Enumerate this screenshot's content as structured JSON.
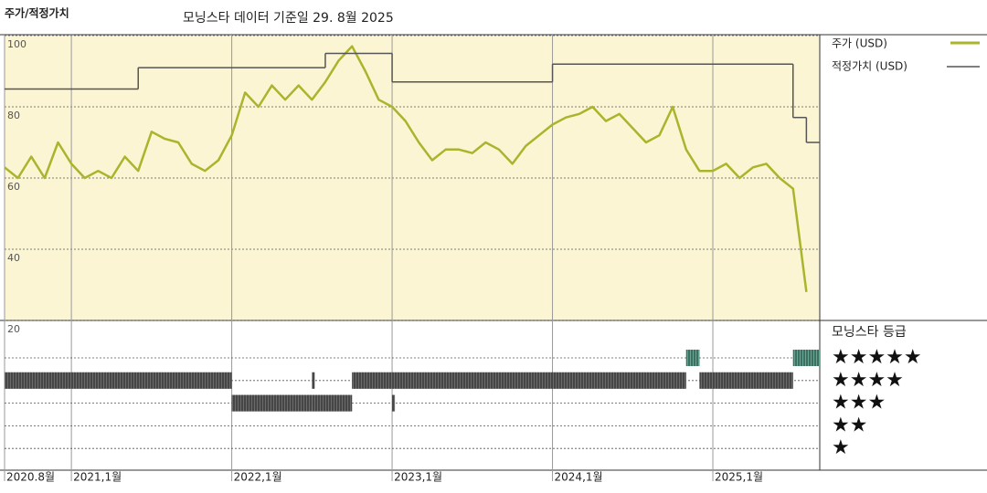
{
  "chart_data": {
    "type": "line",
    "title": "주가/적정가치",
    "subtitle": "모닝스타 데이터 기준일 29. 8월 2025",
    "xlim": [
      "2020-08",
      "2025-09"
    ],
    "xticks": [
      {
        "value": "2020-08",
        "label": "2020.8월"
      },
      {
        "value": "2021-01",
        "label": "2021,1월"
      },
      {
        "value": "2022-01",
        "label": "2022,1월"
      },
      {
        "value": "2023-01",
        "label": "2023,1월"
      },
      {
        "value": "2024-01",
        "label": "2024,1월"
      },
      {
        "value": "2025-01",
        "label": "2025,1월"
      }
    ],
    "ylim": [
      20,
      100
    ],
    "yticks": [
      100,
      80,
      60,
      40,
      20
    ],
    "grid": true,
    "series": [
      {
        "name": "주가 (USD)",
        "color": "#a9b52c",
        "x": [
          "2020-08",
          "2020-09",
          "2020-10",
          "2020-11",
          "2020-12",
          "2021-01",
          "2021-02",
          "2021-03",
          "2021-04",
          "2021-05",
          "2021-06",
          "2021-07",
          "2021-08",
          "2021-09",
          "2021-10",
          "2021-11",
          "2021-12",
          "2022-01",
          "2022-02",
          "2022-03",
          "2022-04",
          "2022-05",
          "2022-06",
          "2022-07",
          "2022-08",
          "2022-09",
          "2022-10",
          "2022-11",
          "2022-12",
          "2023-01",
          "2023-02",
          "2023-03",
          "2023-04",
          "2023-05",
          "2023-06",
          "2023-07",
          "2023-08",
          "2023-09",
          "2023-10",
          "2023-11",
          "2023-12",
          "2024-01",
          "2024-02",
          "2024-03",
          "2024-04",
          "2024-05",
          "2024-06",
          "2024-07",
          "2024-08",
          "2024-09",
          "2024-10",
          "2024-11",
          "2024-12",
          "2025-01",
          "2025-02",
          "2025-03",
          "2025-04",
          "2025-05",
          "2025-06",
          "2025-07",
          "2025-08"
        ],
        "values": [
          63,
          60,
          66,
          60,
          70,
          64,
          60,
          62,
          60,
          66,
          62,
          73,
          71,
          70,
          64,
          62,
          65,
          72,
          84,
          80,
          86,
          82,
          86,
          82,
          87,
          93,
          97,
          90,
          82,
          80,
          76,
          70,
          65,
          68,
          68,
          67,
          70,
          68,
          64,
          69,
          72,
          75,
          77,
          78,
          80,
          76,
          78,
          74,
          70,
          72,
          80,
          68,
          62,
          62,
          64,
          60,
          63,
          64,
          60,
          57,
          28
        ]
      },
      {
        "name": "적정가치 (USD)",
        "color": "#555555",
        "step": true,
        "x": [
          "2020-08",
          "2021-06",
          "2022-08",
          "2023-01",
          "2024-01",
          "2025-07",
          "2025-08"
        ],
        "values": [
          85,
          91,
          95,
          87,
          92,
          77,
          70
        ]
      }
    ],
    "rating_title": "모닝스타 등급",
    "star_labels": [
      "★★★★★",
      "★★★★",
      "★★★",
      "★★",
      "★"
    ],
    "rating_colors": [
      "#3a3a3a",
      "#3a3a3a",
      "#3a3a3a",
      "#3a3a3a",
      "#2e8b6f"
    ],
    "ratings": [
      {
        "stars": 4,
        "start": "2020-08",
        "end": "2022-01"
      },
      {
        "stars": 3,
        "start": "2022-01",
        "end": "2022-07"
      },
      {
        "stars": 4,
        "start": "2022-07",
        "end": "2022-07"
      },
      {
        "stars": 3,
        "start": "2022-07",
        "end": "2022-10"
      },
      {
        "stars": 4,
        "start": "2022-10",
        "end": "2023-01"
      },
      {
        "stars": 3,
        "start": "2023-01",
        "end": "2023-01"
      },
      {
        "stars": 4,
        "start": "2023-01",
        "end": "2024-11"
      },
      {
        "stars": 5,
        "start": "2024-11",
        "end": "2024-12"
      },
      {
        "stars": 4,
        "start": "2024-12",
        "end": "2025-07"
      },
      {
        "stars": 5,
        "start": "2025-07",
        "end": "2025-09"
      }
    ]
  }
}
